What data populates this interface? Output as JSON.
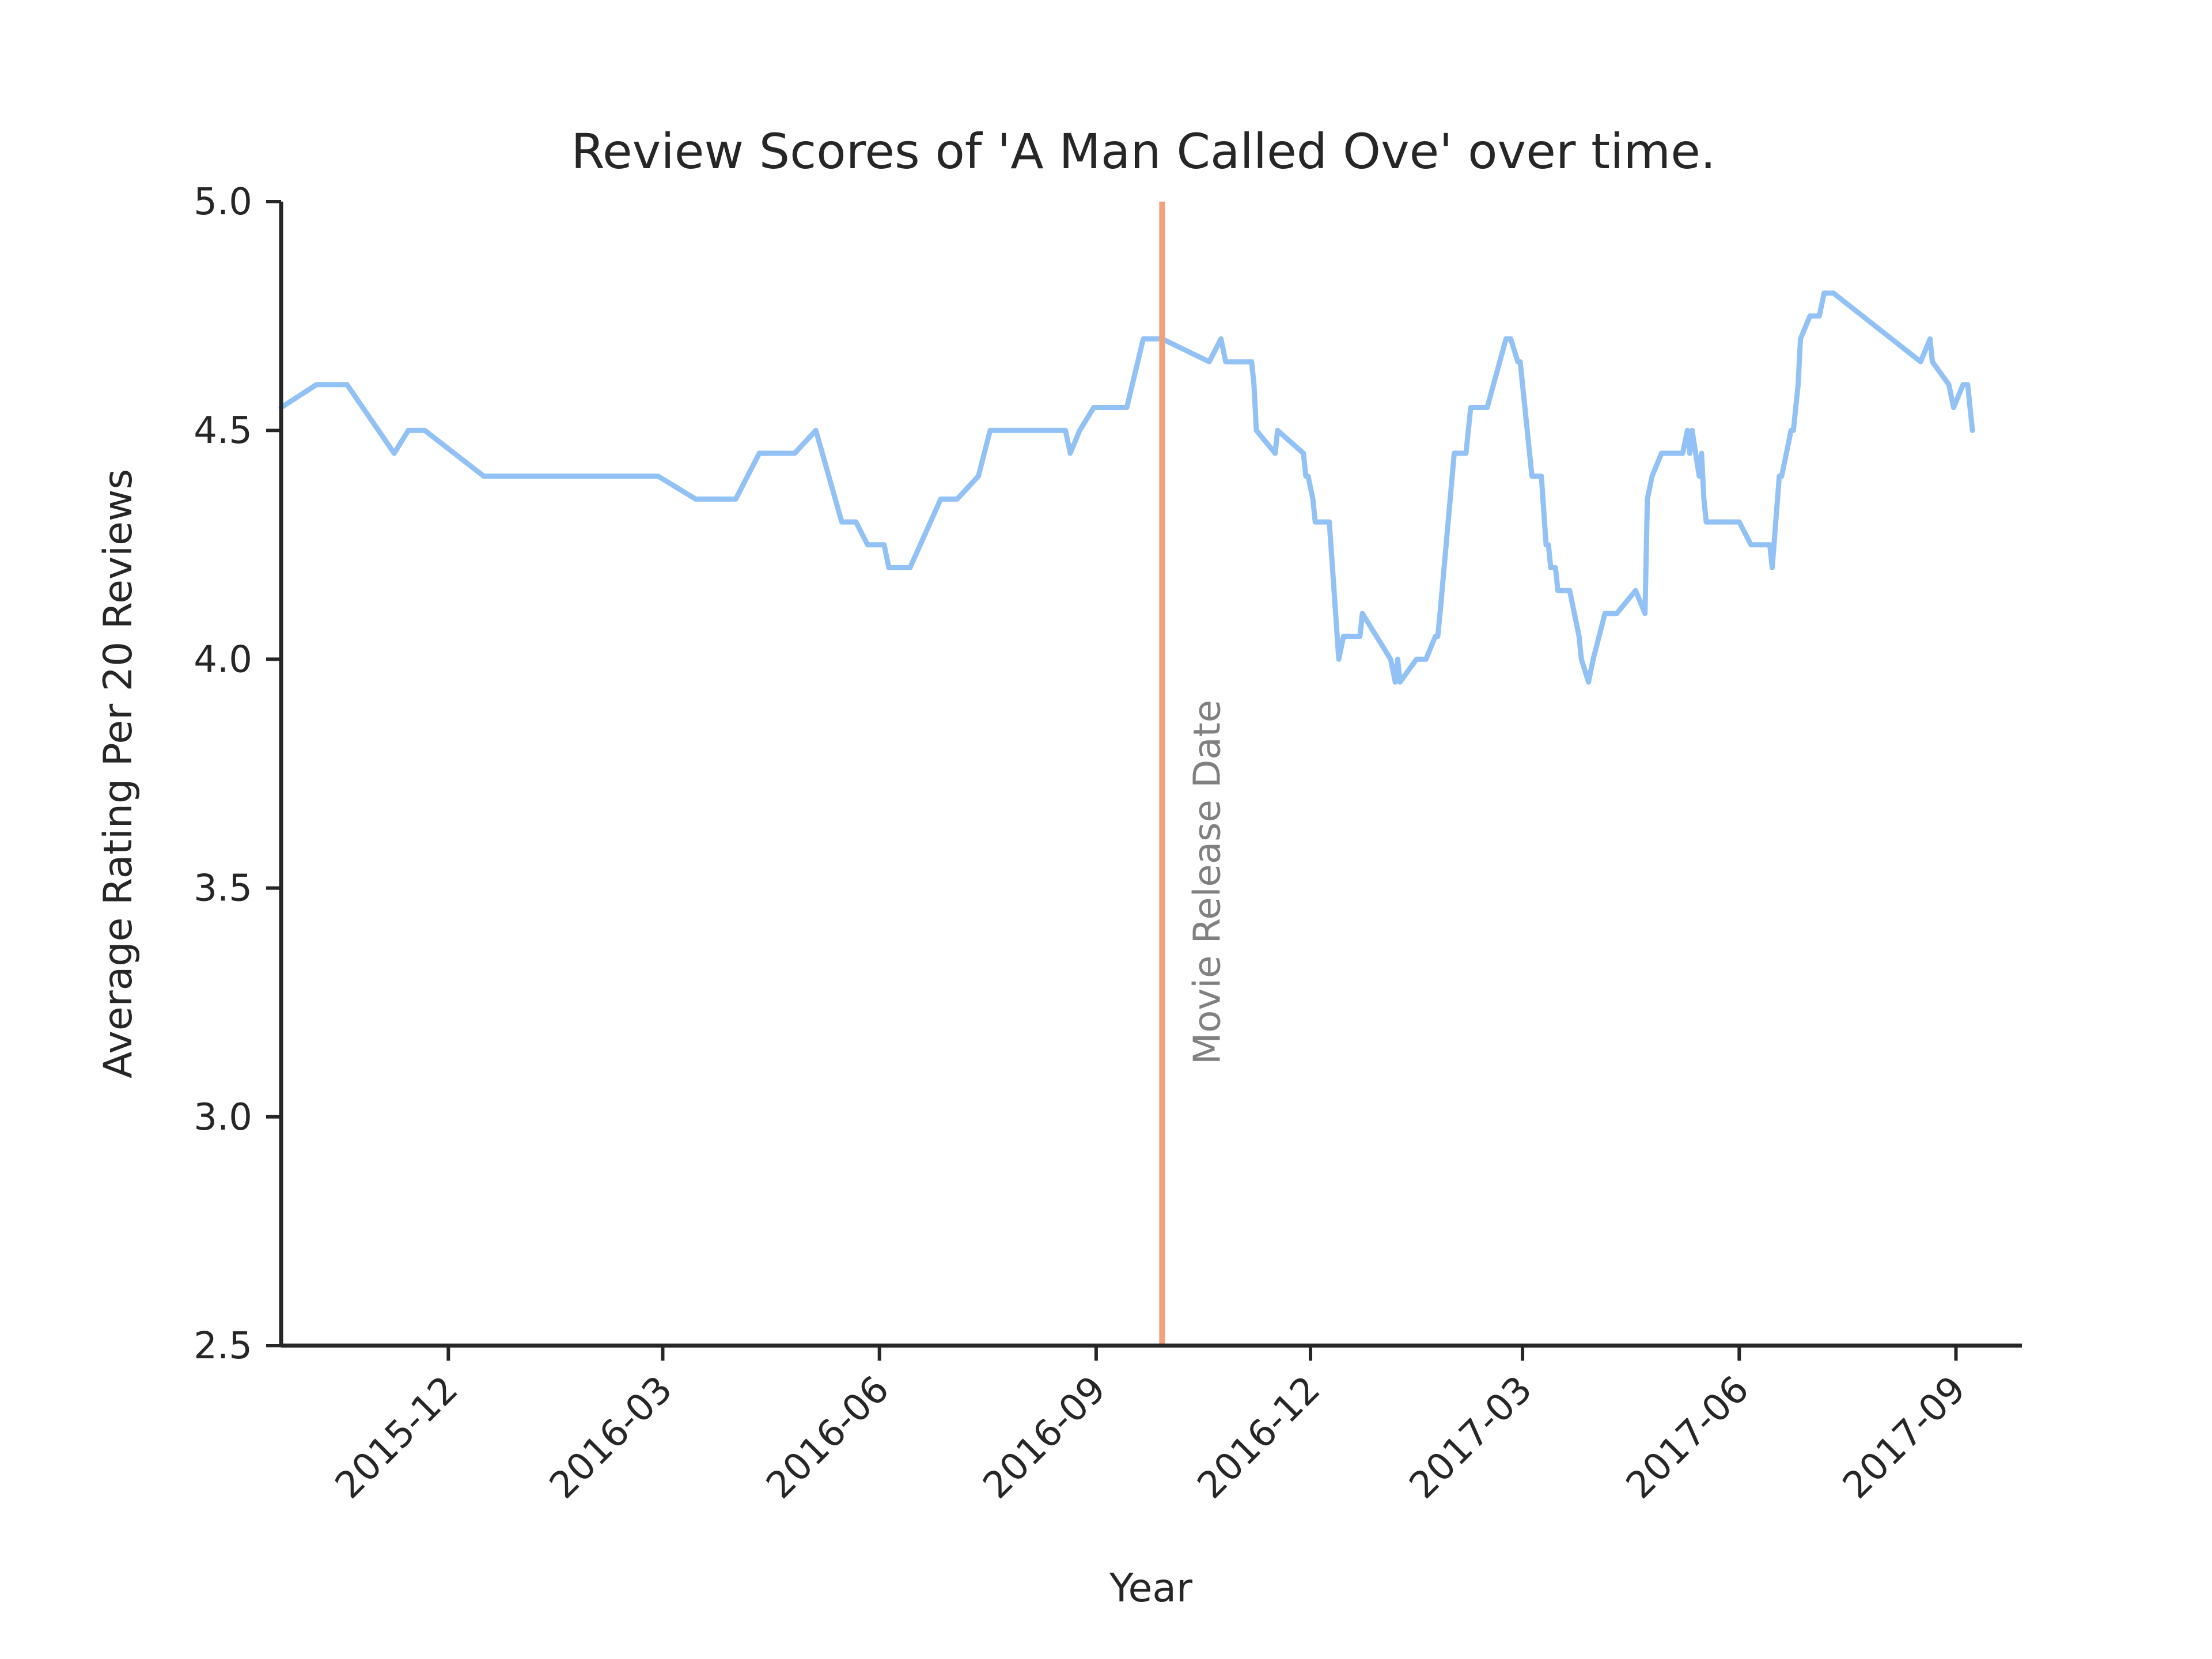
{
  "chart_data": {
    "type": "line",
    "title": "Review Scores of 'A Man Called Ove' over time.",
    "xlabel": "Year",
    "ylabel": "Average Rating Per 20 Reviews",
    "xlim": [
      "2015-09-21",
      "2017-09-29"
    ],
    "ylim": [
      2.5,
      5.0
    ],
    "grid": false,
    "x_ticks": [
      "2015-12-01",
      "2016-03-01",
      "2016-06-01",
      "2016-09-01",
      "2016-12-01",
      "2017-03-01",
      "2017-06-01",
      "2017-09-01"
    ],
    "x_tick_labels": [
      "2015-12",
      "2016-03",
      "2016-06",
      "2016-09",
      "2016-12",
      "2017-03",
      "2017-06",
      "2017-09"
    ],
    "y_ticks": [
      2.5,
      3.0,
      3.5,
      4.0,
      4.5,
      5.0
    ],
    "y_tick_labels": [
      "2.5",
      "3.0",
      "3.5",
      "4.0",
      "4.5",
      "5.0"
    ],
    "series": [
      {
        "color": "#92c2f5",
        "points": [
          [
            "2015-09-21",
            4.55
          ],
          [
            "2015-10-06",
            4.6
          ],
          [
            "2015-10-14",
            4.6
          ],
          [
            "2015-10-19",
            4.6
          ],
          [
            "2015-11-08",
            4.45
          ],
          [
            "2015-11-14",
            4.5
          ],
          [
            "2015-11-21",
            4.5
          ],
          [
            "2015-12-16",
            4.4
          ],
          [
            "2016-01-25",
            4.4
          ],
          [
            "2016-02-28",
            4.4
          ],
          [
            "2016-03-15",
            4.35
          ],
          [
            "2016-04-01",
            4.35
          ],
          [
            "2016-04-11",
            4.45
          ],
          [
            "2016-04-26",
            4.45
          ],
          [
            "2016-05-05",
            4.5
          ],
          [
            "2016-05-16",
            4.3
          ],
          [
            "2016-05-22",
            4.3
          ],
          [
            "2016-05-27",
            4.25
          ],
          [
            "2016-06-03",
            4.25
          ],
          [
            "2016-06-05",
            4.2
          ],
          [
            "2016-06-14",
            4.2
          ],
          [
            "2016-06-27",
            4.35
          ],
          [
            "2016-07-04",
            4.35
          ],
          [
            "2016-07-13",
            4.4
          ],
          [
            "2016-07-18",
            4.5
          ],
          [
            "2016-08-19",
            4.5
          ],
          [
            "2016-08-21",
            4.45
          ],
          [
            "2016-08-25",
            4.5
          ],
          [
            "2016-08-31",
            4.55
          ],
          [
            "2016-09-14",
            4.55
          ],
          [
            "2016-09-21",
            4.7
          ],
          [
            "2016-09-29",
            4.7
          ],
          [
            "2016-10-19",
            4.65
          ],
          [
            "2016-10-24",
            4.7
          ],
          [
            "2016-10-26",
            4.65
          ],
          [
            "2016-11-01",
            4.65
          ],
          [
            "2016-11-06",
            4.65
          ],
          [
            "2016-11-07",
            4.6
          ],
          [
            "2016-11-08",
            4.5
          ],
          [
            "2016-11-16",
            4.45
          ],
          [
            "2016-11-17",
            4.5
          ],
          [
            "2016-11-28",
            4.45
          ],
          [
            "2016-11-29",
            4.4
          ],
          [
            "2016-11-30",
            4.4
          ],
          [
            "2016-12-02",
            4.35
          ],
          [
            "2016-12-03",
            4.3
          ],
          [
            "2016-12-09",
            4.3
          ],
          [
            "2016-12-13",
            4.0
          ],
          [
            "2016-12-15",
            4.05
          ],
          [
            "2016-12-22",
            4.05
          ],
          [
            "2016-12-23",
            4.1
          ],
          [
            "2017-01-04",
            4.0
          ],
          [
            "2017-01-06",
            3.95
          ],
          [
            "2017-01-07",
            4.0
          ],
          [
            "2017-01-08",
            3.95
          ],
          [
            "2017-01-15",
            4.0
          ],
          [
            "2017-01-19",
            4.0
          ],
          [
            "2017-01-23",
            4.05
          ],
          [
            "2017-01-24",
            4.05
          ],
          [
            "2017-01-25",
            4.1
          ],
          [
            "2017-01-31",
            4.45
          ],
          [
            "2017-02-05",
            4.45
          ],
          [
            "2017-02-07",
            4.55
          ],
          [
            "2017-02-14",
            4.55
          ],
          [
            "2017-02-22",
            4.7
          ],
          [
            "2017-02-24",
            4.7
          ],
          [
            "2017-02-27",
            4.65
          ],
          [
            "2017-02-28",
            4.65
          ],
          [
            "2017-03-01",
            4.6
          ],
          [
            "2017-03-02",
            4.55
          ],
          [
            "2017-03-05",
            4.4
          ],
          [
            "2017-03-09",
            4.4
          ],
          [
            "2017-03-11",
            4.25
          ],
          [
            "2017-03-12",
            4.25
          ],
          [
            "2017-03-13",
            4.2
          ],
          [
            "2017-03-15",
            4.2
          ],
          [
            "2017-03-16",
            4.15
          ],
          [
            "2017-03-21",
            4.15
          ],
          [
            "2017-03-25",
            4.05
          ],
          [
            "2017-03-26",
            4.0
          ],
          [
            "2017-03-29",
            3.95
          ],
          [
            "2017-03-31",
            4.0
          ],
          [
            "2017-04-05",
            4.1
          ],
          [
            "2017-04-10",
            4.1
          ],
          [
            "2017-04-18",
            4.15
          ],
          [
            "2017-04-22",
            4.1
          ],
          [
            "2017-04-23",
            4.35
          ],
          [
            "2017-04-25",
            4.4
          ],
          [
            "2017-04-29",
            4.45
          ],
          [
            "2017-05-08",
            4.45
          ],
          [
            "2017-05-10",
            4.5
          ],
          [
            "2017-05-11",
            4.45
          ],
          [
            "2017-05-12",
            4.5
          ],
          [
            "2017-05-15",
            4.4
          ],
          [
            "2017-05-16",
            4.45
          ],
          [
            "2017-05-17",
            4.35
          ],
          [
            "2017-05-18",
            4.3
          ],
          [
            "2017-06-01",
            4.3
          ],
          [
            "2017-06-06",
            4.25
          ],
          [
            "2017-06-14",
            4.25
          ],
          [
            "2017-06-15",
            4.2
          ],
          [
            "2017-06-18",
            4.4
          ],
          [
            "2017-06-19",
            4.4
          ],
          [
            "2017-06-21",
            4.45
          ],
          [
            "2017-06-23",
            4.5
          ],
          [
            "2017-06-24",
            4.5
          ],
          [
            "2017-06-26",
            4.6
          ],
          [
            "2017-06-27",
            4.7
          ],
          [
            "2017-07-01",
            4.75
          ],
          [
            "2017-07-03",
            4.75
          ],
          [
            "2017-07-05",
            4.75
          ],
          [
            "2017-07-07",
            4.8
          ],
          [
            "2017-07-11",
            4.8
          ],
          [
            "2017-08-17",
            4.65
          ],
          [
            "2017-08-21",
            4.7
          ],
          [
            "2017-08-22",
            4.65
          ],
          [
            "2017-08-29",
            4.6
          ],
          [
            "2017-08-31",
            4.55
          ],
          [
            "2017-09-04",
            4.6
          ],
          [
            "2017-09-06",
            4.6
          ],
          [
            "2017-09-08",
            4.5
          ]
        ]
      }
    ],
    "annotations": [
      {
        "type": "vline",
        "x": "2016-09-29",
        "color": "#f4a07a",
        "label": "Movie Release Date",
        "label_color": "#808080"
      }
    ]
  }
}
